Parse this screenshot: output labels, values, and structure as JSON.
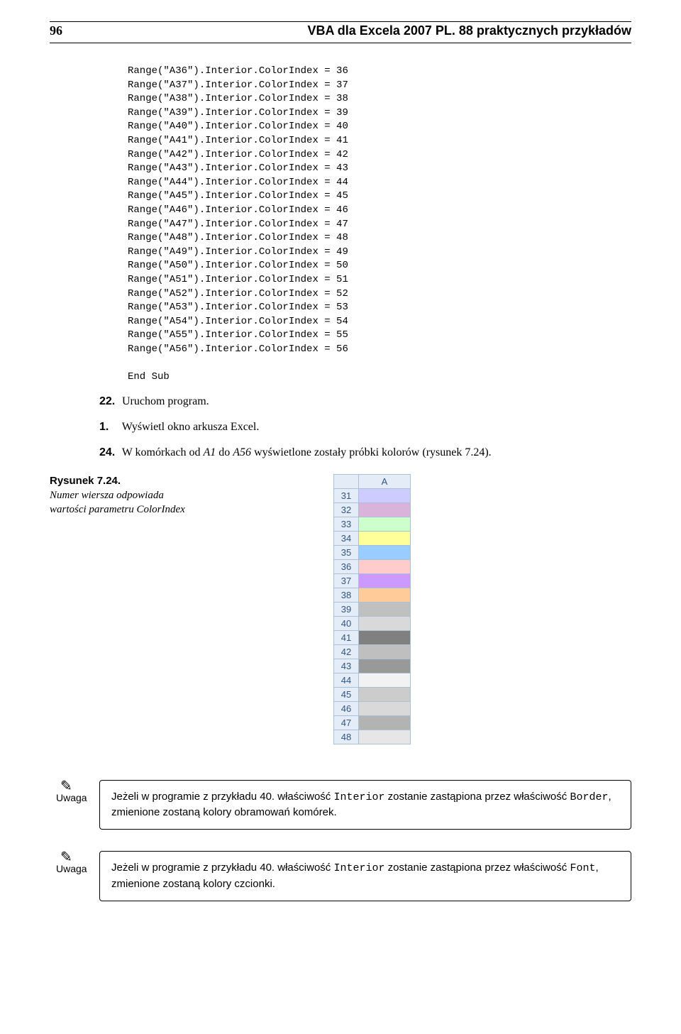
{
  "header": {
    "page_number": "96",
    "title": "VBA dla Excela 2007 PL. 88 praktycznych przykładów"
  },
  "code_lines": [
    "Range(\"A36\").Interior.ColorIndex = 36",
    "Range(\"A37\").Interior.ColorIndex = 37",
    "Range(\"A38\").Interior.ColorIndex = 38",
    "Range(\"A39\").Interior.ColorIndex = 39",
    "Range(\"A40\").Interior.ColorIndex = 40",
    "Range(\"A41\").Interior.ColorIndex = 41",
    "Range(\"A42\").Interior.ColorIndex = 42",
    "Range(\"A43\").Interior.ColorIndex = 43",
    "Range(\"A44\").Interior.ColorIndex = 44",
    "Range(\"A45\").Interior.ColorIndex = 45",
    "Range(\"A46\").Interior.ColorIndex = 46",
    "Range(\"A47\").Interior.ColorIndex = 47",
    "Range(\"A48\").Interior.ColorIndex = 48",
    "Range(\"A49\").Interior.ColorIndex = 49",
    "Range(\"A50\").Interior.ColorIndex = 50",
    "Range(\"A51\").Interior.ColorIndex = 51",
    "Range(\"A52\").Interior.ColorIndex = 52",
    "Range(\"A53\").Interior.ColorIndex = 53",
    "Range(\"A54\").Interior.ColorIndex = 54",
    "Range(\"A55\").Interior.ColorIndex = 55",
    "Range(\"A56\").Interior.ColorIndex = 56",
    "",
    "End Sub"
  ],
  "steps": [
    {
      "num": "22.",
      "text": "Uruchom program."
    },
    {
      "num": "1.",
      "text": "Wyświetl okno arkusza Excel."
    },
    {
      "num": "24.",
      "text_prefix": "W komórkach od ",
      "a1": "A1",
      "mid": " do ",
      "a56": "A56",
      "text_suffix": " wyświetlone zostały próbki kolorów (rysunek 7.24)."
    }
  ],
  "figure": {
    "caption_title": "Rysunek 7.24.",
    "caption_body": "Numer wiersza odpowiada wartości parametru ColorIndex",
    "col_header": "A",
    "rows": [
      {
        "num": "31",
        "color": "#ccccff"
      },
      {
        "num": "32",
        "color": "#d9b3d9"
      },
      {
        "num": "33",
        "color": "#ccffcc"
      },
      {
        "num": "34",
        "color": "#ffff99"
      },
      {
        "num": "35",
        "color": "#99ccff"
      },
      {
        "num": "36",
        "color": "#ffcccc"
      },
      {
        "num": "37",
        "color": "#cc99ff"
      },
      {
        "num": "38",
        "color": "#ffcc99"
      },
      {
        "num": "39",
        "color": "#c0c0c0"
      },
      {
        "num": "40",
        "color": "#d9d9d9"
      },
      {
        "num": "41",
        "color": "#808080"
      },
      {
        "num": "42",
        "color": "#bfbfbf"
      },
      {
        "num": "43",
        "color": "#999999"
      },
      {
        "num": "44",
        "color": "#f2f2f2"
      },
      {
        "num": "45",
        "color": "#cccccc"
      },
      {
        "num": "46",
        "color": "#d9d9d9"
      },
      {
        "num": "47",
        "color": "#b3b3b3"
      },
      {
        "num": "48",
        "color": "#e6e6e6"
      }
    ]
  },
  "notes": [
    {
      "label": "Uwaga",
      "parts": [
        {
          "t": "Jeżeli w programie z przykładu 40. właściwość "
        },
        {
          "t": "Interior",
          "mono": true
        },
        {
          "t": " zostanie zastąpiona przez właściwość "
        },
        {
          "t": "Border",
          "mono": true
        },
        {
          "t": ", zmienione zostaną kolory obramowań komórek."
        }
      ]
    },
    {
      "label": "Uwaga",
      "parts": [
        {
          "t": "Jeżeli w programie z przykładu 40. właściwość "
        },
        {
          "t": "Interior",
          "mono": true
        },
        {
          "t": " zostanie zastąpiona przez właściwość "
        },
        {
          "t": "Font",
          "mono": true
        },
        {
          "t": ", zmienione zostaną kolory czcionki."
        }
      ]
    }
  ]
}
